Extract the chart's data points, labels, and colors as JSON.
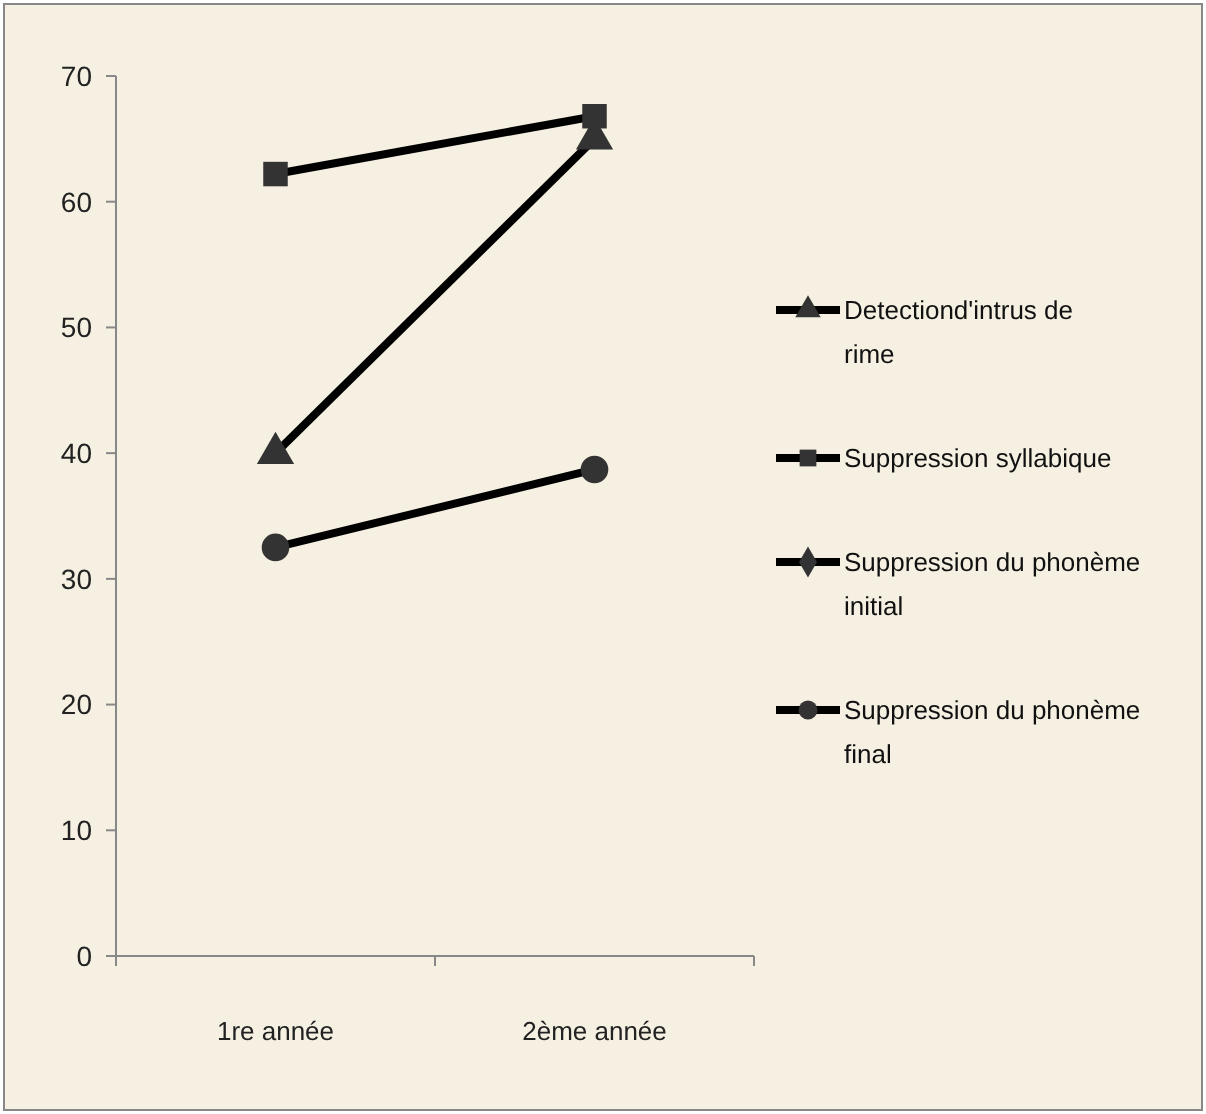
{
  "chart_data": {
    "type": "line",
    "categories": [
      "1re année",
      "2ème année"
    ],
    "series": [
      {
        "name": "Detectiond'intrus de rime",
        "color": "#333333",
        "marker": "triangle",
        "values": [
          40,
          65
        ]
      },
      {
        "name": "Suppression syllabique",
        "color": "#333333",
        "marker": "square",
        "values": [
          62.2,
          66.8
        ]
      },
      {
        "name": "Suppression du phonème initial",
        "color": "#333333",
        "marker": "diamond",
        "values": [
          null,
          null
        ]
      },
      {
        "name": "Suppression du phonème final",
        "color": "#333333",
        "marker": "circle",
        "values": [
          32.5,
          38.7
        ]
      }
    ],
    "ylim": [
      0,
      70
    ],
    "yticks": [
      0,
      10,
      20,
      30,
      40,
      50,
      60,
      70
    ],
    "grid": false,
    "legend": "right"
  }
}
